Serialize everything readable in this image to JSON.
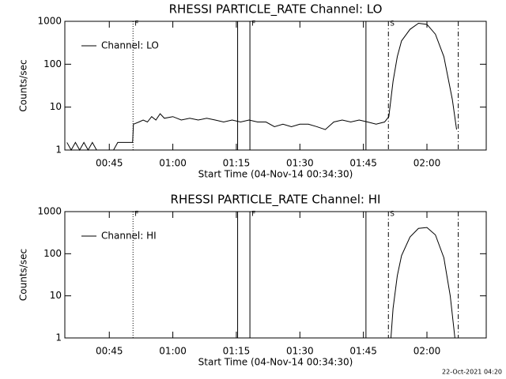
{
  "chart_data": [
    {
      "type": "line",
      "title": "RHESSI PARTICLE_RATE Channel: LO",
      "xlabel": "Start Time (04-Nov-14 00:34:30)",
      "ylabel": "Counts/sec",
      "x": [
        35,
        36,
        37,
        38,
        39,
        40,
        41,
        42,
        44,
        46,
        47,
        49,
        50.5,
        50.7,
        52,
        53,
        54,
        55,
        56,
        57,
        58,
        60,
        62,
        64,
        66,
        68,
        70,
        72,
        74,
        76,
        78,
        80,
        82,
        84,
        86,
        88,
        90,
        92,
        94,
        96,
        98,
        100,
        102,
        104,
        106,
        108,
        110,
        111,
        112,
        113,
        114,
        116,
        118,
        120,
        122,
        124,
        126,
        127
      ],
      "series": [
        {
          "name": "Channel: LO",
          "color": "#000000",
          "values": [
            1.5,
            1,
            1.5,
            1,
            1.5,
            1,
            1.5,
            1,
            1,
            1,
            1.5,
            1.5,
            1.5,
            4,
            4.5,
            5,
            4.5,
            6,
            5,
            7,
            5.5,
            6,
            5,
            5.5,
            5,
            5.5,
            5,
            4.5,
            5,
            4.5,
            5,
            4.5,
            4.5,
            3.5,
            4,
            3.5,
            4,
            4,
            3.5,
            3,
            4.5,
            5,
            4.5,
            5,
            4.5,
            4,
            4.5,
            6,
            40,
            150,
            350,
            650,
            900,
            850,
            500,
            150,
            15,
            3
          ]
        }
      ],
      "xlim": [
        34.5,
        134
      ],
      "xticks": [
        {
          "value": 45,
          "label": "00:45"
        },
        {
          "value": 60,
          "label": "01:00"
        },
        {
          "value": 75,
          "label": "01:15"
        },
        {
          "value": 90,
          "label": "01:30"
        },
        {
          "value": 105,
          "label": "01:45"
        },
        {
          "value": 120,
          "label": "02:00"
        }
      ],
      "ylim": [
        1,
        1000
      ],
      "yticks": [
        1,
        10,
        100,
        1000
      ],
      "log_y": true,
      "legend": "upper left",
      "markers": [
        {
          "x": 50.6,
          "style": "dotted",
          "label": "F"
        },
        {
          "x": 75.3,
          "style": "solid"
        },
        {
          "x": 78.2,
          "style": "solid",
          "label": "F"
        },
        {
          "x": 105.6,
          "style": "solid"
        },
        {
          "x": 110.9,
          "style": "dashdot",
          "label": "S"
        },
        {
          "x": 127.4,
          "style": "dashdot"
        }
      ]
    },
    {
      "type": "line",
      "title": "RHESSI PARTICLE_RATE Channel: HI",
      "xlabel": "Start Time (04-Nov-14 00:34:30)",
      "ylabel": "Counts/sec",
      "x": [
        111.5,
        112,
        113,
        114,
        116,
        118,
        120,
        122,
        124,
        125.5,
        126.6
      ],
      "series": [
        {
          "name": "Channel: HI",
          "color": "#000000",
          "values": [
            1,
            5,
            30,
            90,
            250,
            400,
            420,
            280,
            80,
            10,
            1
          ]
        }
      ],
      "xlim": [
        34.5,
        134
      ],
      "xticks": [
        {
          "value": 45,
          "label": "00:45"
        },
        {
          "value": 60,
          "label": "01:00"
        },
        {
          "value": 75,
          "label": "01:15"
        },
        {
          "value": 90,
          "label": "01:30"
        },
        {
          "value": 105,
          "label": "01:45"
        },
        {
          "value": 120,
          "label": "02:00"
        }
      ],
      "ylim": [
        1,
        1000
      ],
      "yticks": [
        1,
        10,
        100,
        1000
      ],
      "log_y": true,
      "legend": "upper left",
      "markers": [
        {
          "x": 50.6,
          "style": "dotted",
          "label": "F"
        },
        {
          "x": 75.3,
          "style": "solid"
        },
        {
          "x": 78.2,
          "style": "solid",
          "label": "F"
        },
        {
          "x": 105.6,
          "style": "solid"
        },
        {
          "x": 110.9,
          "style": "dashdot",
          "label": "S"
        },
        {
          "x": 127.4,
          "style": "dashdot"
        }
      ]
    }
  ],
  "footer": "22-Oct-2021 04:20"
}
